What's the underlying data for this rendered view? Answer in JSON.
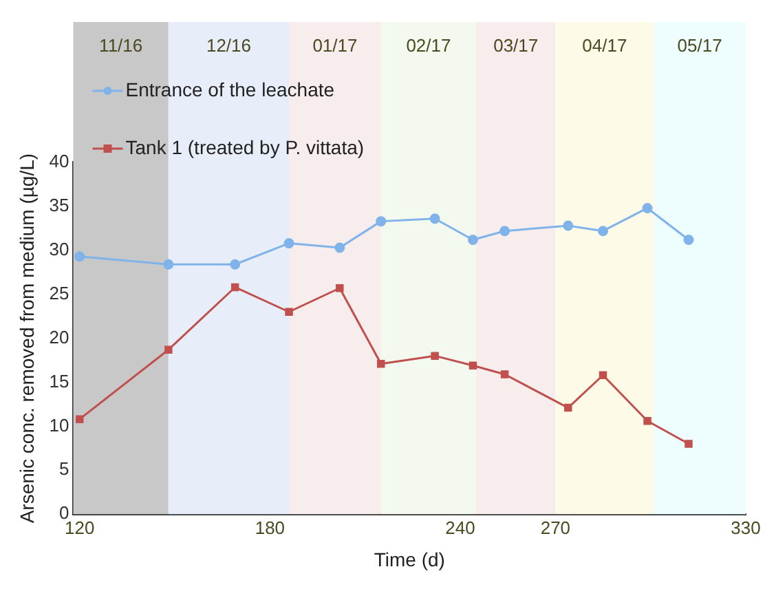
{
  "chart_data": {
    "type": "line",
    "xlabel": "Time (d)",
    "ylabel": "Arsenic conc. removed from medium (µg/L)",
    "xlim": [
      118,
      330
    ],
    "xticks": [
      120,
      180,
      240,
      270,
      330
    ],
    "ylim": [
      0,
      40
    ],
    "yticks": [
      0,
      5,
      10,
      15,
      20,
      25,
      30,
      35,
      40
    ],
    "grid": false,
    "legend": "top left",
    "bands": [
      {
        "axis": "x",
        "from": 118,
        "to": 148,
        "label": "11/16",
        "color": "#c8c8c8"
      },
      {
        "axis": "x",
        "from": 148,
        "to": 186,
        "label": "12/16",
        "color": "#e8eef9"
      },
      {
        "axis": "x",
        "from": 186,
        "to": 215,
        "label": "01/17",
        "color": "#f7eded"
      },
      {
        "axis": "x",
        "from": 215,
        "to": 245,
        "label": "02/17",
        "color": "#f3f9ef"
      },
      {
        "axis": "x",
        "from": 245,
        "to": 270,
        "label": "03/17",
        "color": "#f7eded"
      },
      {
        "axis": "x",
        "from": 270,
        "to": 301,
        "label": "04/17",
        "color": "#fdfbe8"
      },
      {
        "axis": "x",
        "from": 301,
        "to": 330,
        "label": "05/17",
        "color": "#eefdfd"
      }
    ],
    "x": [
      120,
      148,
      169,
      186,
      202,
      215,
      232,
      244,
      254,
      274,
      285,
      299,
      312
    ],
    "series": [
      {
        "name": "Entrance of the leachate",
        "color": "#7fb3ea",
        "marker": "circle",
        "values": [
          29.3,
          28.4,
          28.4,
          30.8,
          30.3,
          33.3,
          33.6,
          31.2,
          32.2,
          32.8,
          32.2,
          34.8,
          31.2
        ]
      },
      {
        "name": "Tank 1 (treated by P. vittata)",
        "color": "#c0504d",
        "marker": "square",
        "values": [
          10.8,
          18.7,
          25.8,
          23.0,
          25.7,
          17.1,
          18.0,
          16.9,
          15.9,
          12.1,
          15.8,
          10.6,
          8.0
        ]
      }
    ]
  }
}
